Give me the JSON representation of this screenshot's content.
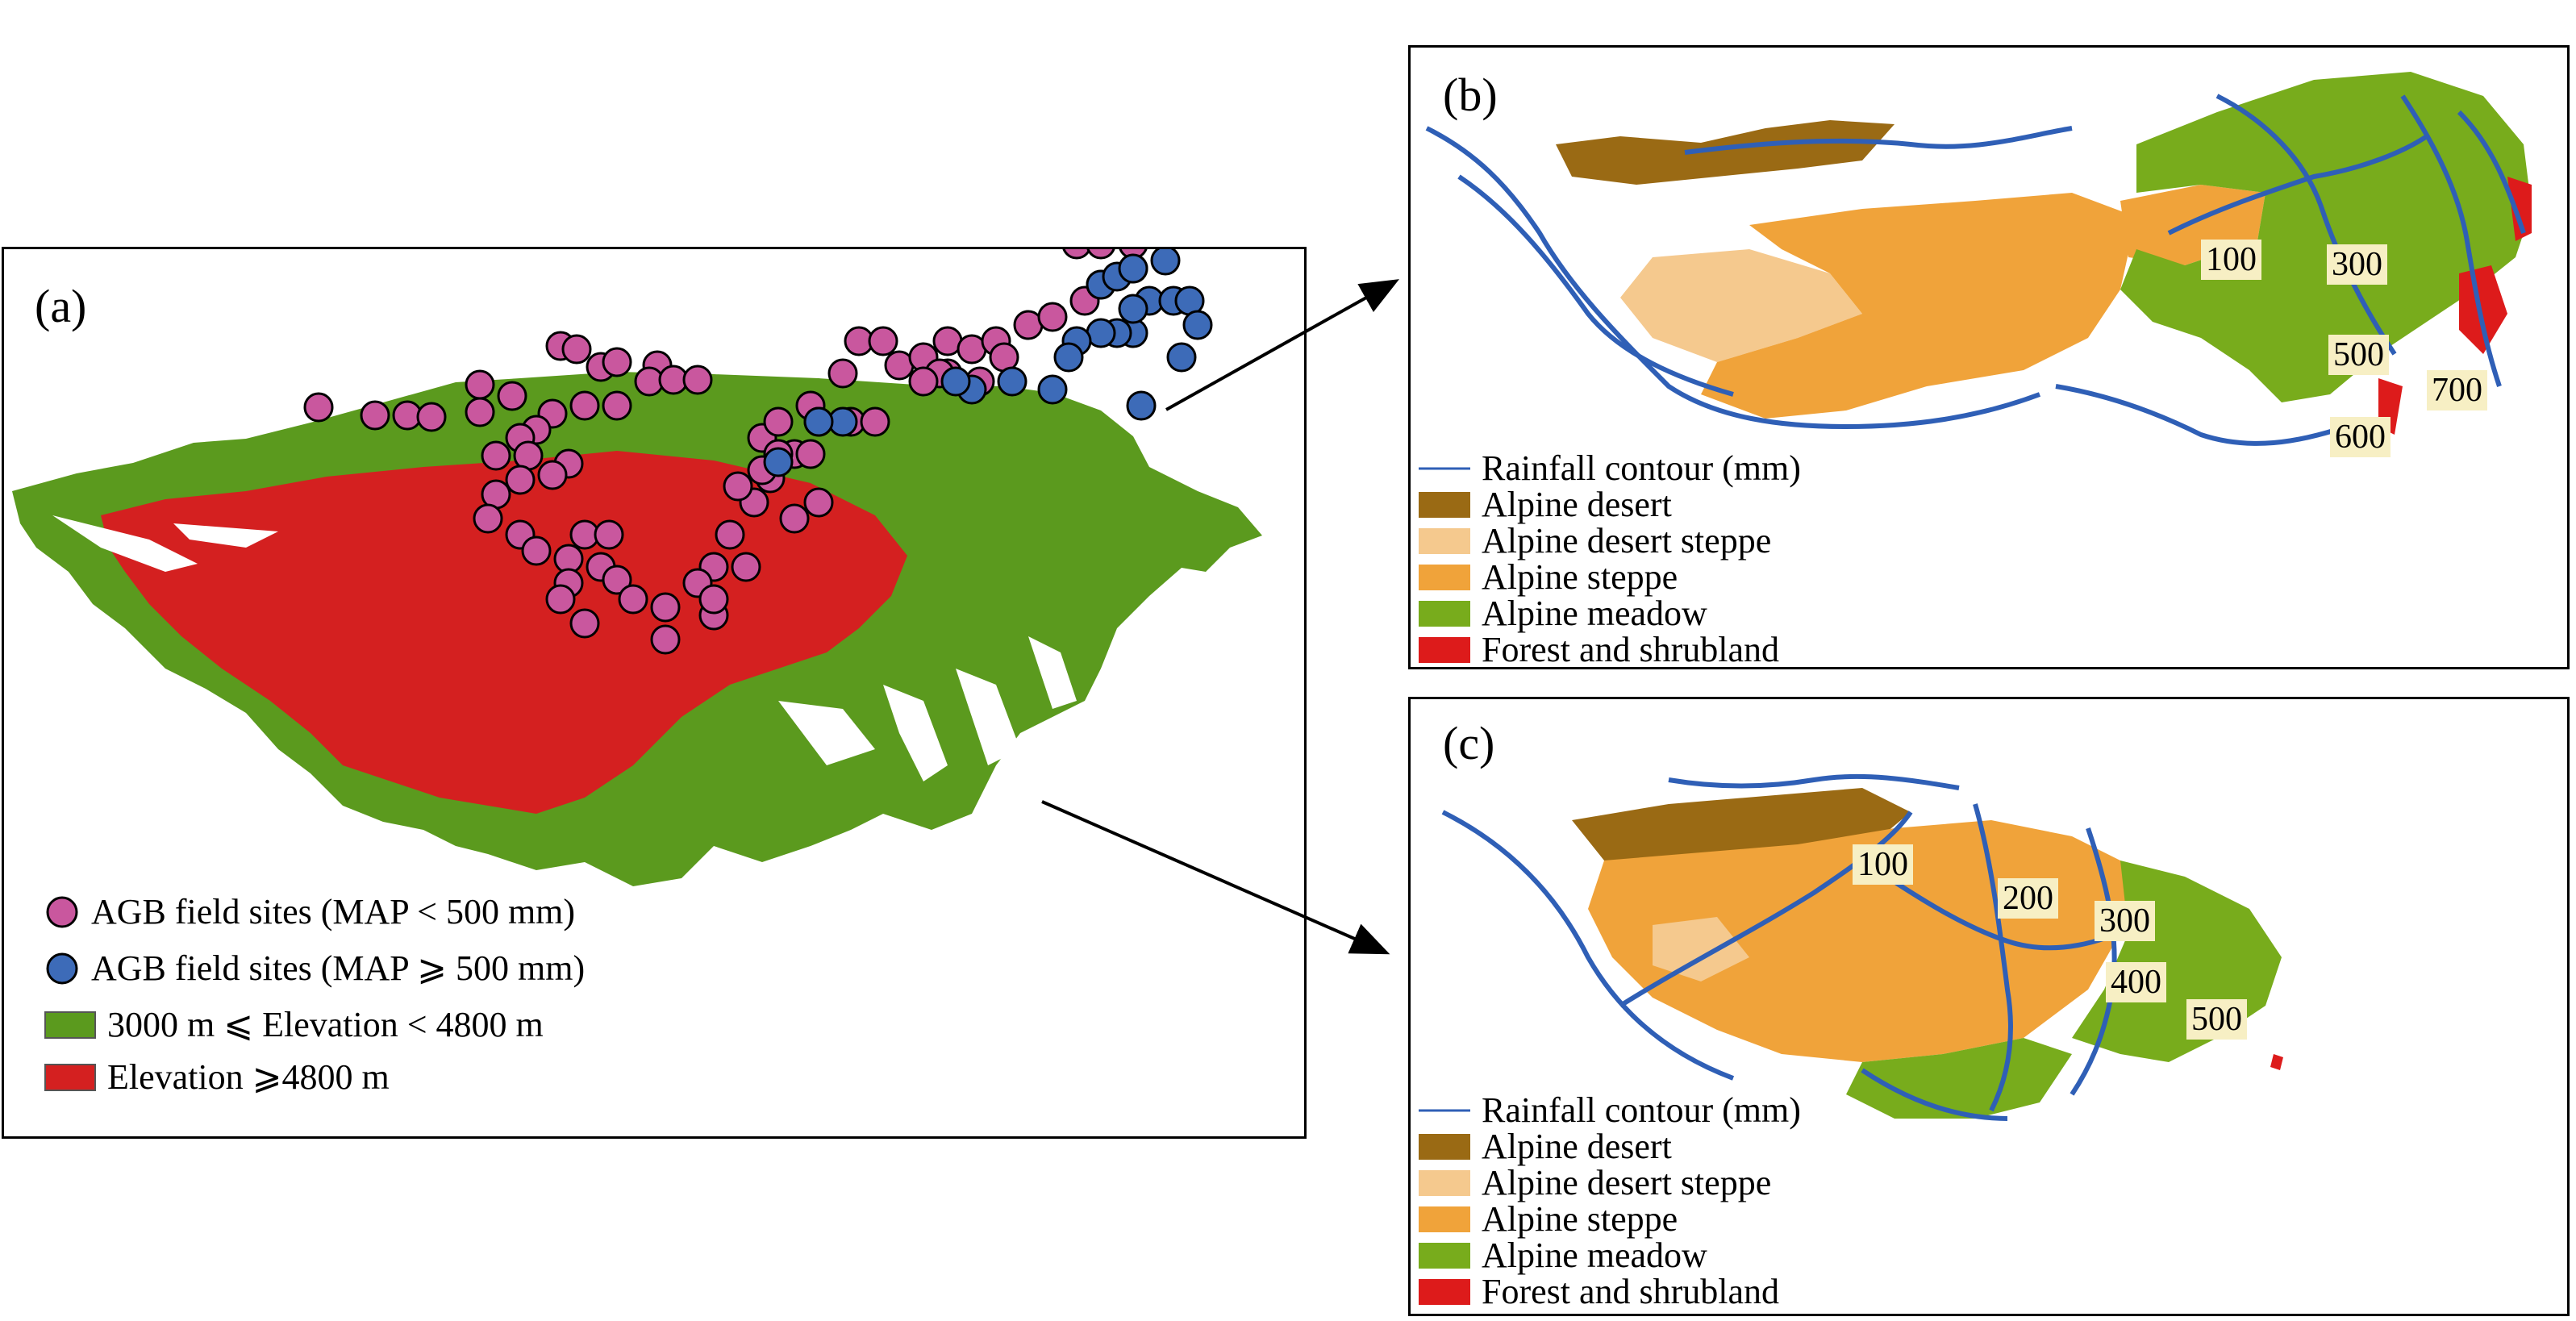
{
  "colors": {
    "mid_elevation": "#5b9a1e",
    "high_elevation": "#d42020",
    "site_low": "#c9579e",
    "site_high": "#3d6bb8",
    "alpine_desert": "#9a6a14",
    "alpine_desert_steppe": "#f5c98e",
    "alpine_steppe": "#f0a33a",
    "alpine_meadow": "#78ac1c",
    "forest_shrubland": "#dd1b1b",
    "contour": "#2f5fb6"
  },
  "panel_a": {
    "label": "(a)",
    "legend": [
      {
        "symbol": "circle-pink",
        "text": "AGB field sites (MAP < 500 mm)"
      },
      {
        "symbol": "circle-blue",
        "text": "AGB field sites (MAP ⩾ 500 mm)"
      },
      {
        "symbol": "box-green",
        "text": "3000 m ⩽ Elevation < 4800 m"
      },
      {
        "symbol": "box-red",
        "text": "Elevation ⩾4800 m"
      }
    ]
  },
  "panel_b": {
    "label": "(b)",
    "contour_labels": [
      "100",
      "300",
      "500",
      "700",
      "600"
    ],
    "legend": [
      {
        "symbol": "line-blue",
        "text": "Rainfall contour (mm)"
      },
      {
        "symbol": "box-alpine-desert",
        "text": "Alpine desert"
      },
      {
        "symbol": "box-alpine-desert-steppe",
        "text": "Alpine desert steppe"
      },
      {
        "symbol": "box-alpine-steppe",
        "text": "Alpine steppe"
      },
      {
        "symbol": "box-alpine-meadow",
        "text": "Alpine meadow"
      },
      {
        "symbol": "box-forest",
        "text": "Forest and shrubland"
      }
    ]
  },
  "panel_c": {
    "label": "(c)",
    "contour_labels": [
      "100",
      "200",
      "300",
      "400",
      "500"
    ],
    "legend": [
      {
        "symbol": "line-blue",
        "text": "Rainfall contour (mm)"
      },
      {
        "symbol": "box-alpine-desert",
        "text": "Alpine desert"
      },
      {
        "symbol": "box-alpine-desert-steppe",
        "text": "Alpine desert steppe"
      },
      {
        "symbol": "box-alpine-steppe",
        "text": "Alpine steppe"
      },
      {
        "symbol": "box-alpine-meadow",
        "text": "Alpine meadow"
      },
      {
        "symbol": "box-forest",
        "text": "Forest and shrubland"
      }
    ]
  }
}
